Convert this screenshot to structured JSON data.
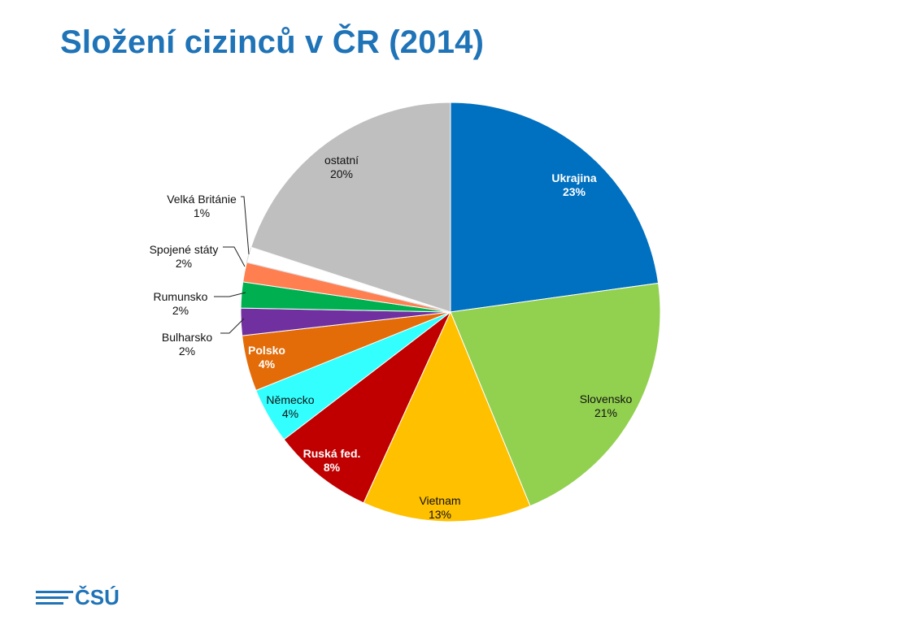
{
  "header": {
    "title": "Složení cizinců v ČR (2014)"
  },
  "logo": {
    "text": "ČSÚ"
  },
  "chart_data": {
    "type": "pie",
    "title": "Složení cizinců v ČR (2014)",
    "start_angle_deg": 0,
    "direction": "clockwise",
    "slices": [
      {
        "label": "Ukrajina",
        "value_label": "23%",
        "value": 22.8,
        "color": "#0070c0",
        "label_color": "#ffffff",
        "bold_value": true
      },
      {
        "label": "Slovensko",
        "value_label": "21%",
        "value": 21.0,
        "color": "#92d050",
        "label_color": "#111111",
        "bold_value": false
      },
      {
        "label": "Vietnam",
        "value_label": "13%",
        "value": 13.0,
        "color": "#ffc000",
        "label_color": "#111111",
        "bold_value": false
      },
      {
        "label": "Ruská fed.",
        "value_label": "8%",
        "value": 7.8,
        "color": "#c00000",
        "label_color": "#ffffff",
        "bold_value": true
      },
      {
        "label": "Německo",
        "value_label": "4%",
        "value": 4.3,
        "color": "#33ffff",
        "label_color": "#111111",
        "bold_value": false
      },
      {
        "label": "Polsko",
        "value_label": "4%",
        "value": 4.3,
        "color": "#e36c09",
        "label_color": "#ffffff",
        "bold_value": true
      },
      {
        "label": "Bulharsko",
        "value_label": "2%",
        "value": 2.1,
        "color": "#7030a0",
        "label_color": "#111111",
        "bold_value": false
      },
      {
        "label": "Rumunsko",
        "value_label": "2%",
        "value": 2.0,
        "color": "#00b050",
        "label_color": "#111111",
        "bold_value": false
      },
      {
        "label": "Spojené státy",
        "value_label": "2%",
        "value": 1.5,
        "color": "#ff7f50",
        "label_color": "#111111",
        "bold_value": false
      },
      {
        "label": "Velká Británie",
        "value_label": "1%",
        "value": 1.2,
        "color": "#ffffff",
        "label_color": "#111111",
        "bold_value": false
      },
      {
        "label": "ostatní",
        "value_label": "20%",
        "value": 20.0,
        "color": "#bfbfbf",
        "label_color": "#111111",
        "bold_value": false
      }
    ]
  }
}
